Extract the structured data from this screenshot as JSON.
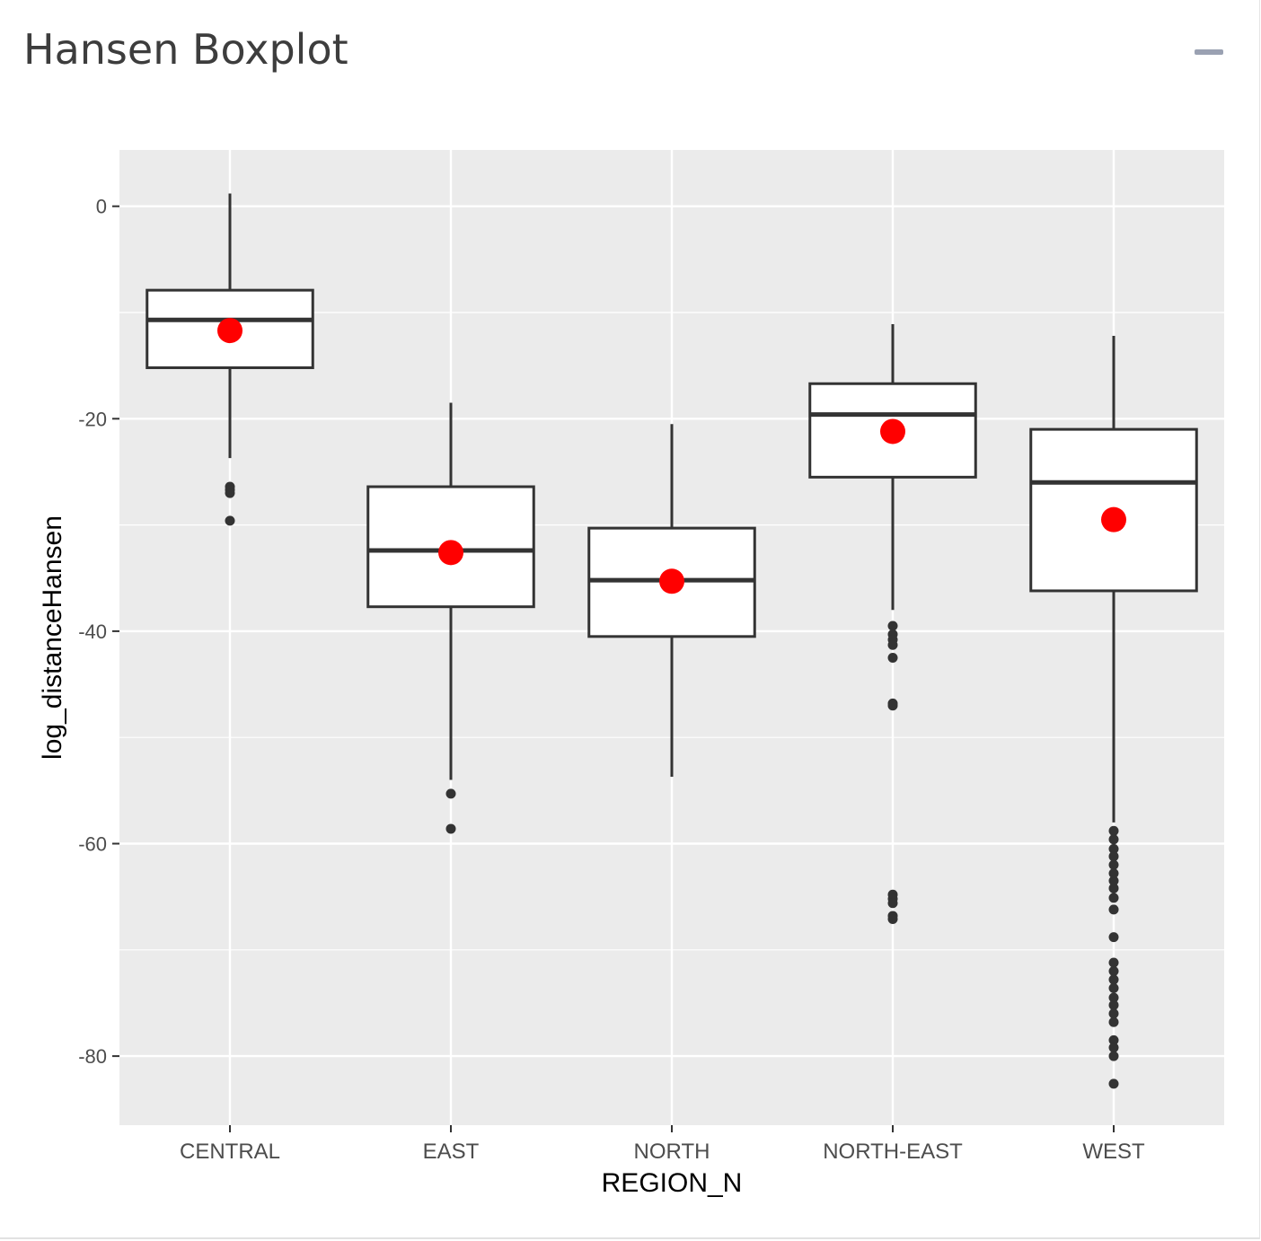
{
  "panel": {
    "title": "Hansen Boxplot",
    "collapse_icon": "minus-icon"
  },
  "colors": {
    "panel_background": "#ebebeb",
    "gridline": "#ffffff",
    "box_line": "#333333",
    "box_fill": "#ffffff",
    "outlier": "#333333",
    "mean_point": "#ff0000",
    "collapse_icon": "#9aa1b2"
  },
  "chart_data": {
    "type": "boxplot",
    "xlabel": "REGION_N",
    "ylabel": "log_distanceHansen",
    "categories": [
      "CENTRAL",
      "EAST",
      "NORTH",
      "NORTH-EAST",
      "WEST"
    ],
    "ylim": [
      -86.5,
      5.3
    ],
    "yticks": [
      0,
      -20,
      -40,
      -60,
      -80
    ],
    "ytick_labels": [
      "0",
      "-20",
      "-40",
      "-60",
      "-80"
    ],
    "grid": true,
    "legend": "none",
    "boxes": [
      {
        "category": "CENTRAL",
        "whisker_low": -23.7,
        "q1": -15.2,
        "median": -10.7,
        "q3": -7.9,
        "whisker_high": 1.2,
        "mean": -11.7,
        "outliers": [
          -26.4,
          -26.7,
          -27.0,
          -29.6
        ]
      },
      {
        "category": "EAST",
        "whisker_low": -54.0,
        "q1": -37.7,
        "median": -32.4,
        "q3": -26.4,
        "whisker_high": -18.5,
        "mean": -32.6,
        "outliers": [
          -55.3,
          -58.6
        ]
      },
      {
        "category": "NORTH",
        "whisker_low": -53.7,
        "q1": -40.5,
        "median": -35.2,
        "q3": -30.3,
        "whisker_high": -20.5,
        "mean": -35.3,
        "outliers": []
      },
      {
        "category": "NORTH-EAST",
        "whisker_low": -38.0,
        "q1": -25.5,
        "median": -19.6,
        "q3": -16.7,
        "whisker_high": -11.1,
        "mean": -21.2,
        "outliers": [
          -39.5,
          -40.3,
          -40.8,
          -41.3,
          -42.5,
          -46.8,
          -47.0,
          -64.8,
          -65.2,
          -65.6,
          -66.8,
          -67.1
        ]
      },
      {
        "category": "WEST",
        "whisker_low": -58.0,
        "q1": -36.2,
        "median": -26.0,
        "q3": -21.0,
        "whisker_high": -12.2,
        "mean": -29.5,
        "outliers": [
          -58.8,
          -59.6,
          -60.5,
          -61.2,
          -62.0,
          -62.8,
          -63.5,
          -64.2,
          -65.1,
          -66.2,
          -68.8,
          -71.2,
          -72.0,
          -72.8,
          -73.6,
          -74.5,
          -75.2,
          -76.0,
          -76.8,
          -78.5,
          -79.2,
          -80.0,
          -82.6
        ]
      }
    ]
  }
}
